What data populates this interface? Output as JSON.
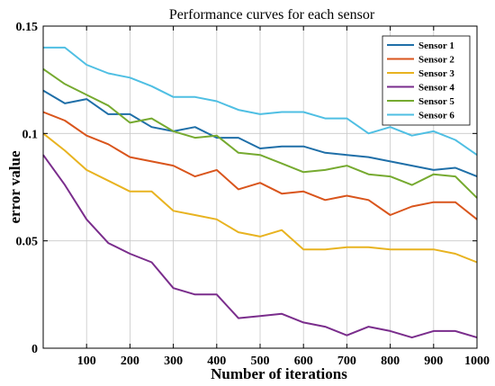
{
  "chart_data": {
    "type": "line",
    "title": "Performance curves for each sensor",
    "xlabel": "Number of iterations",
    "ylabel": "error value",
    "xlim": [
      0,
      1000
    ],
    "ylim": [
      0,
      0.15
    ],
    "x_ticks": [
      100,
      200,
      300,
      400,
      500,
      600,
      700,
      800,
      900,
      1000
    ],
    "y_ticks": [
      0,
      0.05,
      0.1,
      0.15
    ],
    "y_tick_labels": [
      "0",
      "0.05",
      "0.1",
      "0.15"
    ],
    "grid": true,
    "legend_position": "top-right",
    "x": [
      0,
      50,
      100,
      150,
      200,
      250,
      300,
      350,
      400,
      450,
      500,
      550,
      600,
      650,
      700,
      750,
      800,
      850,
      900,
      950,
      1000
    ],
    "series": [
      {
        "name": "Sensor 1",
        "color": "#1f6fa8",
        "values": [
          0.12,
          0.114,
          0.116,
          0.109,
          0.109,
          0.103,
          0.101,
          0.103,
          0.098,
          0.098,
          0.093,
          0.094,
          0.094,
          0.091,
          0.09,
          0.089,
          0.087,
          0.085,
          0.083,
          0.084,
          0.08
        ]
      },
      {
        "name": "Sensor 2",
        "color": "#d9551c",
        "values": [
          0.11,
          0.106,
          0.099,
          0.095,
          0.089,
          0.087,
          0.085,
          0.08,
          0.083,
          0.074,
          0.077,
          0.072,
          0.073,
          0.069,
          0.071,
          0.069,
          0.062,
          0.066,
          0.068,
          0.068,
          0.06
        ]
      },
      {
        "name": "Sensor 3",
        "color": "#e8b320",
        "values": [
          0.1,
          0.092,
          0.083,
          0.078,
          0.073,
          0.073,
          0.064,
          0.062,
          0.06,
          0.054,
          0.052,
          0.055,
          0.046,
          0.046,
          0.047,
          0.047,
          0.046,
          0.046,
          0.046,
          0.044,
          0.04
        ]
      },
      {
        "name": "Sensor 4",
        "color": "#7a2d8c",
        "values": [
          0.09,
          0.076,
          0.06,
          0.049,
          0.044,
          0.04,
          0.028,
          0.025,
          0.025,
          0.014,
          0.015,
          0.016,
          0.012,
          0.01,
          0.006,
          0.01,
          0.008,
          0.005,
          0.008,
          0.008,
          0.005
        ]
      },
      {
        "name": "Sensor 5",
        "color": "#76aa30",
        "values": [
          0.13,
          0.123,
          0.118,
          0.113,
          0.105,
          0.107,
          0.101,
          0.098,
          0.099,
          0.091,
          0.09,
          0.086,
          0.082,
          0.083,
          0.085,
          0.081,
          0.08,
          0.076,
          0.081,
          0.08,
          0.07
        ]
      },
      {
        "name": "Sensor 6",
        "color": "#4fbfe3",
        "values": [
          0.14,
          0.14,
          0.132,
          0.128,
          0.126,
          0.122,
          0.117,
          0.117,
          0.115,
          0.111,
          0.109,
          0.11,
          0.11,
          0.107,
          0.107,
          0.1,
          0.103,
          0.099,
          0.101,
          0.097,
          0.09
        ]
      }
    ]
  }
}
